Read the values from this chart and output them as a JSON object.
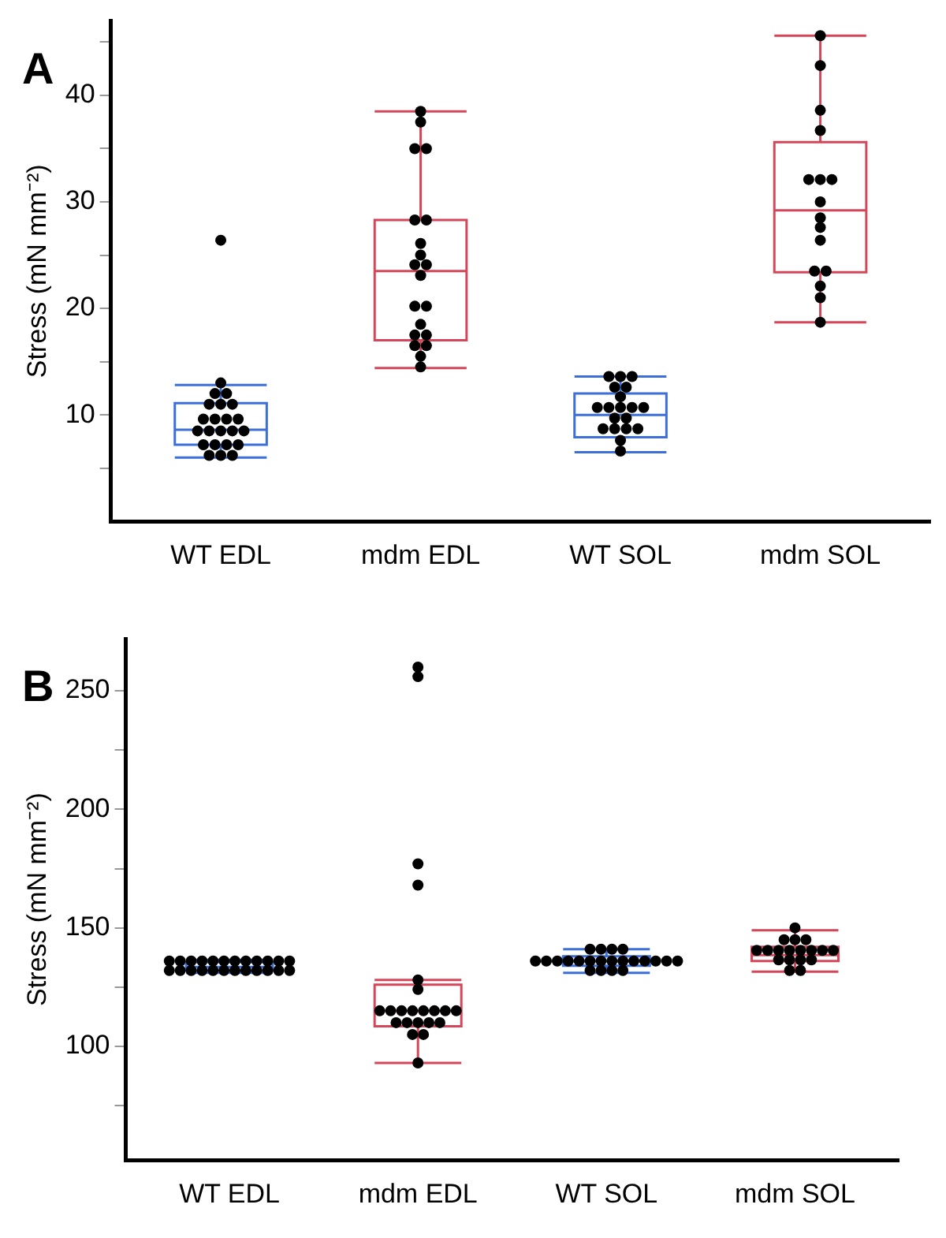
{
  "chart_data": [
    {
      "type": "box",
      "title": "A",
      "ylabel": "Stress (mN mm⁻²)",
      "categories": [
        "WT EDL",
        "mdm EDL",
        "WT SOL",
        "mdm SOL"
      ],
      "ylim": [
        0,
        47
      ],
      "yticks": [
        {
          "value": 5,
          "label": null
        },
        10,
        {
          "value": 15,
          "label": null
        },
        20,
        {
          "value": 25,
          "label": null
        },
        30,
        {
          "value": 35,
          "label": null
        },
        40,
        {
          "value": 45,
          "label": null
        }
      ],
      "colors": [
        "#3d6fd9",
        "#d4475a",
        "#3d6fd9",
        "#d4475a"
      ],
      "boxes": [
        {
          "low": 6.0,
          "q1": 7.2,
          "median": 8.6,
          "q3": 11.1,
          "high": 12.8,
          "outliers": [
            26.4
          ]
        },
        {
          "low": 14.4,
          "q1": 17.0,
          "median": 23.5,
          "q3": 28.3,
          "high": 38.5
        },
        {
          "low": 6.5,
          "q1": 7.9,
          "median": 10.0,
          "q3": 12.0,
          "high": 13.6
        },
        {
          "low": 18.7,
          "q1": 23.4,
          "median": 29.2,
          "q3": 35.6,
          "high": 45.6
        }
      ],
      "series": [
        {
          "type": "scatter",
          "color": "#000000",
          "x": [
            "WT EDL",
            "WT EDL",
            "WT EDL",
            "WT EDL",
            "WT EDL",
            "WT EDL",
            "WT EDL",
            "WT EDL",
            "WT EDL",
            "WT EDL",
            "WT EDL",
            "WT EDL",
            "WT EDL",
            "WT EDL",
            "WT EDL",
            "WT EDL",
            "WT EDL",
            "WT EDL",
            "WT EDL",
            "WT EDL",
            "WT EDL",
            "WT EDL",
            "mdm EDL",
            "mdm EDL",
            "mdm EDL",
            "mdm EDL",
            "mdm EDL",
            "mdm EDL",
            "mdm EDL",
            "mdm EDL",
            "mdm EDL",
            "mdm EDL",
            "mdm EDL",
            "mdm EDL",
            "mdm EDL",
            "mdm EDL",
            "mdm EDL",
            "mdm EDL",
            "mdm EDL",
            "mdm EDL",
            "mdm EDL",
            "mdm EDL",
            "WT SOL",
            "WT SOL",
            "WT SOL",
            "WT SOL",
            "WT SOL",
            "WT SOL",
            "WT SOL",
            "WT SOL",
            "WT SOL",
            "WT SOL",
            "WT SOL",
            "WT SOL",
            "WT SOL",
            "WT SOL",
            "WT SOL",
            "WT SOL",
            "WT SOL",
            "WT SOL",
            "WT SOL",
            "mdm SOL",
            "mdm SOL",
            "mdm SOL",
            "mdm SOL",
            "mdm SOL",
            "mdm SOL",
            "mdm SOL",
            "mdm SOL",
            "mdm SOL",
            "mdm SOL",
            "mdm SOL",
            "mdm SOL",
            "mdm SOL",
            "mdm SOL",
            "mdm SOL",
            "mdm SOL"
          ],
          "values": [
            13.0,
            12.0,
            12.0,
            11.0,
            11.0,
            11.0,
            9.6,
            9.6,
            9.6,
            9.6,
            8.5,
            8.5,
            8.5,
            8.5,
            8.5,
            7.2,
            7.2,
            7.2,
            7.2,
            6.2,
            6.2,
            6.2,
            38.5,
            37.5,
            35.0,
            35.0,
            28.3,
            28.3,
            26.1,
            25.0,
            24.1,
            24.1,
            23.1,
            20.2,
            20.2,
            18.5,
            17.5,
            17.5,
            16.5,
            16.5,
            15.5,
            14.5,
            13.6,
            13.6,
            13.6,
            12.6,
            12.6,
            11.7,
            10.7,
            10.7,
            10.7,
            10.7,
            10.7,
            9.7,
            9.7,
            8.7,
            8.7,
            8.7,
            8.7,
            7.6,
            6.6,
            45.6,
            42.8,
            38.6,
            36.7,
            32.1,
            32.1,
            32.1,
            30.0,
            28.5,
            27.6,
            26.4,
            23.5,
            23.5,
            22.1,
            21.0,
            18.7
          ]
        }
      ]
    },
    {
      "type": "box",
      "title": "B",
      "ylabel": "Stress (mN mm⁻²)",
      "categories": [
        "WT EDL",
        "mdm EDL",
        "WT SOL",
        "mdm SOL"
      ],
      "ylim": [
        52,
        272
      ],
      "yticks": [
        {
          "value": 75,
          "label": null
        },
        100,
        {
          "value": 125,
          "label": null
        },
        150,
        {
          "value": 175,
          "label": null
        },
        200,
        {
          "value": 225,
          "label": null
        },
        250
      ],
      "colors": [
        "#3d6fd9",
        "#d4475a",
        "#3d6fd9",
        "#d4475a"
      ],
      "boxes": [
        {
          "low": 131,
          "q1": 132,
          "median": 133.5,
          "q3": 135.5,
          "high": 136.5
        },
        {
          "low": 93,
          "q1": 108.5,
          "median": 115,
          "q3": 126,
          "high": 128,
          "outliers": [
            260,
            256,
            177,
            168
          ]
        },
        {
          "low": 131,
          "q1": 134,
          "median": 136,
          "q3": 138,
          "high": 141
        },
        {
          "low": 131.5,
          "q1": 136,
          "median": 138.5,
          "q3": 142,
          "high": 149
        }
      ],
      "series": [
        {
          "type": "scatter",
          "color": "#000000",
          "x": [
            "WT EDL",
            "WT EDL",
            "WT EDL",
            "WT EDL",
            "WT EDL",
            "WT EDL",
            "WT EDL",
            "WT EDL",
            "WT EDL",
            "WT EDL",
            "WT EDL",
            "WT EDL",
            "WT EDL",
            "WT EDL",
            "WT EDL",
            "WT EDL",
            "WT EDL",
            "WT EDL",
            "WT EDL",
            "WT EDL",
            "WT EDL",
            "WT EDL",
            "WT EDL",
            "WT EDL",
            "mdm EDL",
            "mdm EDL",
            "mdm EDL",
            "mdm EDL",
            "mdm EDL",
            "mdm EDL",
            "mdm EDL",
            "mdm EDL",
            "mdm EDL",
            "mdm EDL",
            "mdm EDL",
            "mdm EDL",
            "mdm EDL",
            "mdm EDL",
            "mdm EDL",
            "mdm EDL",
            "mdm EDL",
            "mdm EDL",
            "WT SOL",
            "WT SOL",
            "WT SOL",
            "WT SOL",
            "WT SOL",
            "WT SOL",
            "WT SOL",
            "WT SOL",
            "WT SOL",
            "WT SOL",
            "WT SOL",
            "WT SOL",
            "WT SOL",
            "WT SOL",
            "WT SOL",
            "WT SOL",
            "WT SOL",
            "WT SOL",
            "WT SOL",
            "WT SOL",
            "WT SOL",
            "WT SOL",
            "mdm SOL",
            "mdm SOL",
            "mdm SOL",
            "mdm SOL",
            "mdm SOL",
            "mdm SOL",
            "mdm SOL",
            "mdm SOL",
            "mdm SOL",
            "mdm SOL",
            "mdm SOL",
            "mdm SOL",
            "mdm SOL",
            "mdm SOL",
            "mdm SOL",
            "mdm SOL",
            "mdm SOL",
            "mdm SOL"
          ],
          "values": [
            136,
            136,
            136,
            136,
            136,
            136,
            136,
            136,
            136,
            136,
            136,
            136,
            132,
            132,
            132,
            132,
            132,
            132,
            132,
            132,
            132,
            132,
            132,
            132,
            128,
            124,
            115,
            115,
            115,
            115,
            115,
            115,
            115,
            115,
            110,
            110,
            110,
            110,
            110,
            105,
            105,
            93,
            141,
            141,
            141,
            141,
            136,
            136,
            136,
            136,
            136,
            136,
            136,
            136,
            136,
            136,
            136,
            136,
            136,
            136,
            132,
            132,
            132,
            132,
            150,
            145,
            145,
            145,
            140.5,
            140.5,
            140.5,
            140.5,
            140.5,
            140.5,
            140.5,
            140.5,
            136.5,
            136.5,
            136.5,
            136.5,
            132,
            132
          ]
        }
      ]
    }
  ]
}
